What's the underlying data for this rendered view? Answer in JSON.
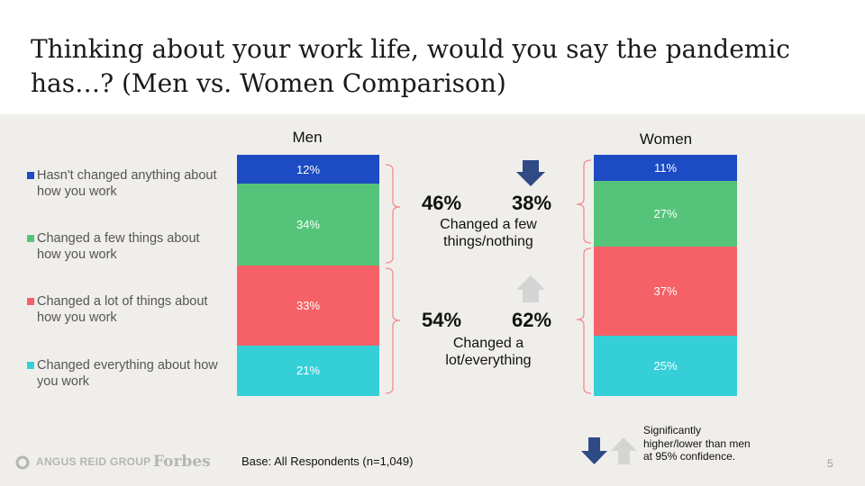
{
  "title": "Thinking about your work life, would you say the pandemic has…? (Men vs. Women Comparison)",
  "colors": {
    "hasnt_changed": "#1c4bc3",
    "few_things": "#55c47a",
    "lot_of_things": "#f56166",
    "everything": "#35cfd8",
    "bracket": "#f28c8f",
    "arrow_down": "#2f4a85",
    "arrow_up": "#d4d4d4"
  },
  "legend": [
    {
      "label": "Hasn't changed anything about how you work",
      "color": "#1c4bc3"
    },
    {
      "label": "Changed a few things about how you work",
      "color": "#55c47a"
    },
    {
      "label": "Changed a lot of things about how you work",
      "color": "#f56166"
    },
    {
      "label": "Changed everything about how you work",
      "color": "#35cfd8"
    }
  ],
  "chart_data": {
    "type": "bar",
    "stacked": true,
    "categories": [
      "Men",
      "Women"
    ],
    "series": [
      {
        "name": "Hasn't changed anything about how you work",
        "values": [
          12,
          11
        ],
        "labels": [
          "12%",
          "11%"
        ]
      },
      {
        "name": "Changed a few things about how you work",
        "values": [
          34,
          27
        ],
        "labels": [
          "34%",
          "27%"
        ]
      },
      {
        "name": "Changed a lot of things about how you work",
        "values": [
          33,
          37
        ],
        "labels": [
          "33%",
          "37%"
        ]
      },
      {
        "name": "Changed everything about how you work",
        "values": [
          21,
          25
        ],
        "labels": [
          "21%",
          "25%"
        ]
      }
    ],
    "groups": [
      {
        "label": "Changed a few things/nothing",
        "men": "46%",
        "women": "38%",
        "women_significance": "lower"
      },
      {
        "label": "Changed a lot/everything",
        "men": "54%",
        "women": "62%",
        "women_significance": "higher"
      }
    ],
    "legend_position": "left"
  },
  "comparison": {
    "group1": {
      "men": "46%",
      "women": "38%",
      "line1": "Changed a few",
      "line2": "things/nothing"
    },
    "group2": {
      "men": "54%",
      "women": "62%",
      "line1": "Changed a",
      "line2": "lot/everything"
    }
  },
  "footer": {
    "base": "Base: All Respondents (n=1,049)",
    "logo": "ANGUS REID GROUP",
    "partner": "Forbes",
    "significance_note": "Significantly higher/lower than men at 95% confidence.",
    "page_number": "5"
  }
}
